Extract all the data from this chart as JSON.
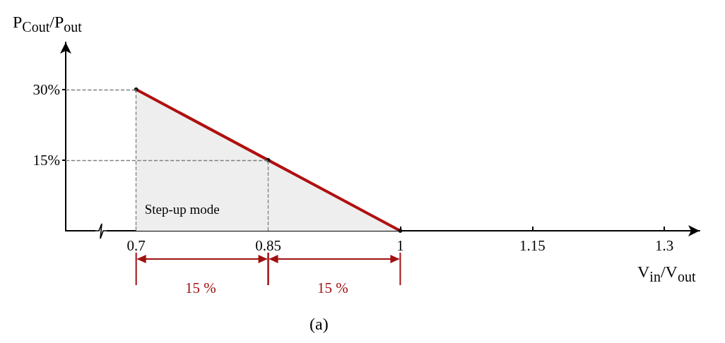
{
  "chart_data": {
    "type": "area",
    "xlabel": "V$_{in}$/V$_{out}$",
    "ylabel": "P$_{Cout}$/P$_{out}$",
    "x": [
      0.7,
      0.85,
      1
    ],
    "series": [
      {
        "color": "#b01010",
        "values": [
          30,
          15,
          0
        ]
      }
    ],
    "xlim": [
      0.62,
      1.34
    ],
    "ylim": [
      0,
      40
    ],
    "xticks": [
      0.7,
      0.85,
      1,
      1.15,
      1.3
    ],
    "yticks": [
      {
        "value": 15,
        "label": "15%"
      },
      {
        "value": 30,
        "label": "30%"
      }
    ],
    "ref_lines": [
      {
        "axis": "x",
        "value": 0.7,
        "line_style": "dashed",
        "color": "#808080"
      },
      {
        "axis": "x",
        "value": 0.85,
        "line_style": "dashed",
        "color": "#808080"
      },
      {
        "axis": "y",
        "value": 30,
        "line_style": "dashed",
        "color": "#808080"
      },
      {
        "axis": "y",
        "value": 15,
        "line_style": "dashed",
        "color": "#808080"
      }
    ],
    "annotations": [
      "Step-up mode",
      "15 %",
      "15 %",
      "(a)"
    ],
    "marker": "circle",
    "line_style": "solid",
    "grid": false
  }
}
